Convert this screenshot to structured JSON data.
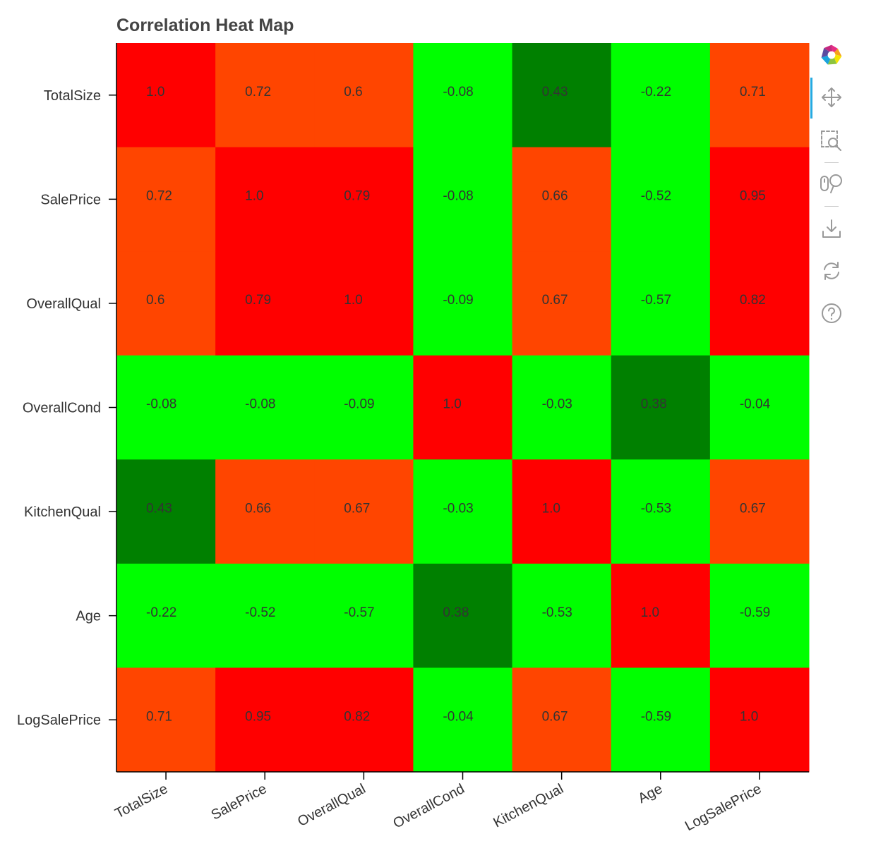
{
  "chart_data": {
    "type": "heatmap",
    "title": "Correlation Heat Map",
    "x_categories": [
      "TotalSize",
      "SalePrice",
      "OverallQual",
      "OverallCond",
      "KitchenQual",
      "Age",
      "LogSalePrice"
    ],
    "y_categories": [
      "TotalSize",
      "SalePrice",
      "OverallQual",
      "OverallCond",
      "KitchenQual",
      "Age",
      "LogSalePrice"
    ],
    "values": [
      [
        1.0,
        0.72,
        0.6,
        -0.08,
        0.43,
        -0.22,
        0.71
      ],
      [
        0.72,
        1.0,
        0.79,
        -0.08,
        0.66,
        -0.52,
        0.95
      ],
      [
        0.6,
        0.79,
        1.0,
        -0.09,
        0.67,
        -0.57,
        0.82
      ],
      [
        -0.08,
        -0.08,
        -0.09,
        1.0,
        -0.03,
        0.38,
        -0.04
      ],
      [
        0.43,
        0.66,
        0.67,
        -0.03,
        1.0,
        -0.53,
        0.67
      ],
      [
        -0.22,
        -0.52,
        -0.57,
        0.38,
        -0.53,
        1.0,
        -0.59
      ],
      [
        0.71,
        0.95,
        0.82,
        -0.04,
        0.67,
        -0.59,
        1.0
      ]
    ],
    "labels": [
      [
        "1.0",
        "0.72",
        "0.6",
        "-0.08",
        "0.43",
        "-0.22",
        "0.71"
      ],
      [
        "0.72",
        "1.0",
        "0.79",
        "-0.08",
        "0.66",
        "-0.52",
        "0.95"
      ],
      [
        "0.6",
        "0.79",
        "1.0",
        "-0.09",
        "0.67",
        "-0.57",
        "0.82"
      ],
      [
        "-0.08",
        "-0.08",
        "-0.09",
        "1.0",
        "-0.03",
        "0.38",
        "-0.04"
      ],
      [
        "0.43",
        "0.66",
        "0.67",
        "-0.03",
        "1.0",
        "-0.53",
        "0.67"
      ],
      [
        "-0.22",
        "-0.52",
        "-0.57",
        "0.38",
        "-0.53",
        "1.0",
        "-0.59"
      ],
      [
        "0.71",
        "0.95",
        "0.82",
        "-0.04",
        "0.67",
        "-0.59",
        "1.0"
      ]
    ],
    "colors": {
      "dark_green": "#008000",
      "lime": "#00ff00",
      "orange_red": "#ff4500",
      "red": "#ff0000"
    },
    "color_bins": [
      {
        "color": "dark_green",
        "min": 0.3,
        "max": 0.5
      },
      {
        "color": "orange_red",
        "min": 0.5,
        "max": 0.75
      },
      {
        "color": "red",
        "min": 0.75,
        "max": 1.0
      },
      {
        "color": "lime",
        "min": 0.0,
        "max": 0.3
      }
    ],
    "xlabel": "",
    "ylabel": "",
    "grid": false,
    "legend": "none"
  },
  "toolbar": {
    "items": [
      {
        "name": "bokeh-logo-icon",
        "interactable": true
      },
      {
        "name": "pan-icon",
        "interactable": true,
        "active": true
      },
      {
        "name": "box-zoom-icon",
        "interactable": true
      },
      {
        "name": "wheel-zoom-icon",
        "interactable": true
      },
      {
        "name": "save-icon",
        "interactable": true
      },
      {
        "name": "reset-icon",
        "interactable": true
      },
      {
        "name": "help-icon",
        "interactable": true
      }
    ]
  }
}
